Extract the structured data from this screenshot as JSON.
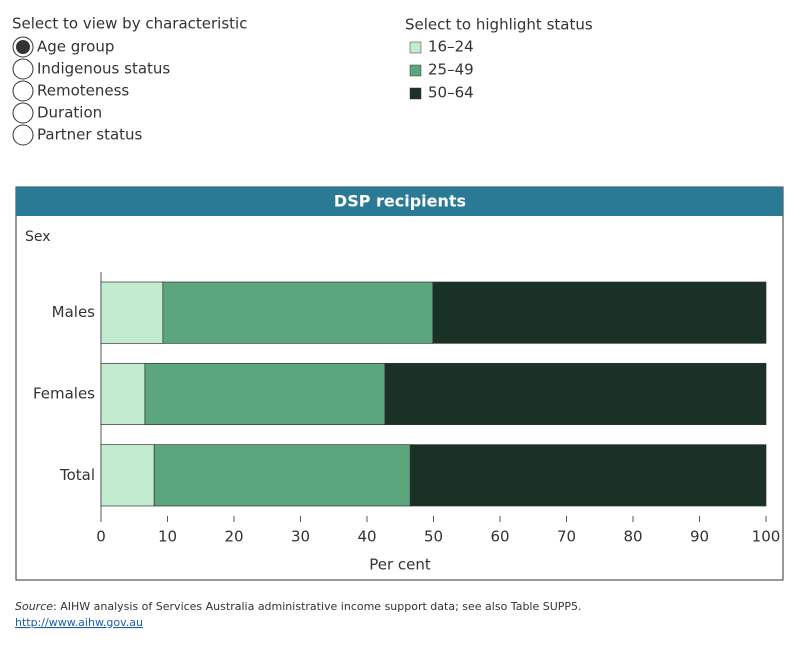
{
  "controls": {
    "characteristic": {
      "title": "Select to view by characteristic",
      "options": [
        "Age group",
        "Indigenous status",
        "Remoteness",
        "Duration",
        "Partner status"
      ],
      "selected": 0
    },
    "highlight_title": "Select to highlight status"
  },
  "chart_data": {
    "type": "stacked-bar-horizontal",
    "title": "DSP recipients",
    "y_label": "Sex",
    "x_label": "Per cent",
    "categories": [
      "Males",
      "Females",
      "Total"
    ],
    "series": [
      {
        "name": "16–24",
        "color": "#c2ebd0",
        "values": [
          9.3,
          6.6,
          8.0
        ]
      },
      {
        "name": "25–49",
        "color": "#5ba67c",
        "values": [
          40.6,
          36.1,
          38.5
        ]
      },
      {
        "name": "50–64",
        "color": "#1a3226",
        "values": [
          50.1,
          57.3,
          53.5
        ]
      }
    ],
    "xlim": [
      0,
      100
    ],
    "xticks": [
      0,
      10,
      20,
      30,
      40,
      50,
      60,
      70,
      80,
      90,
      100
    ]
  },
  "source": {
    "label": "Source",
    "text": ": AIHW analysis of Services Australia administrative income support data; see also Table SUPP5.",
    "link": "http://www.aihw.gov.au"
  }
}
